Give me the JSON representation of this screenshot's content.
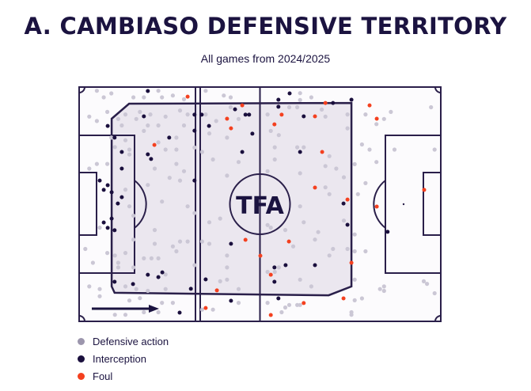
{
  "title": "A. CAMBIASO DEFENSIVE TERRITORY",
  "subtitle": "All games from 2024/2025",
  "logo_text": "TFA",
  "colors": {
    "defensive_action": "#cbc7d5",
    "interception": "#1a0f3d",
    "foul": "#f4401f",
    "territory_fill": "#ebe7ef",
    "pitch_line": "#2a1f4a",
    "pitch_bg": "#fcfbfd"
  },
  "legend": [
    {
      "label": "Defensive action",
      "color": "#9c96ad"
    },
    {
      "label": "Interception",
      "color": "#1a0f3d"
    },
    {
      "label": "Foul",
      "color": "#f4401f"
    }
  ],
  "chart_data": {
    "type": "scatter",
    "title": "A. CAMBIASO DEFENSIVE TERRITORY",
    "subtitle": "All games from 2024/2025",
    "coordinate_system": "pitch 0-100 (x: own goal to opponent goal, y: top to bottom)",
    "attack_direction": "left-to-right",
    "legend_placement": "bottom-left",
    "territory_polygon": [
      [
        9,
        13.5
      ],
      [
        13.8,
        7.1
      ],
      [
        75.3,
        6.8
      ],
      [
        75.3,
        85.1
      ],
      [
        69,
        88.9
      ],
      [
        9.8,
        87.8
      ],
      [
        9,
        85.1
      ]
    ],
    "series": [
      {
        "name": "Defensive action",
        "points": [
          [
            4.9,
            1.6
          ],
          [
            6.8,
            4.4
          ],
          [
            8.9,
            2.7
          ],
          [
            15.0,
            4.4
          ],
          [
            17.9,
            4.4
          ],
          [
            21.9,
            1.6
          ],
          [
            22.9,
            4.4
          ],
          [
            25.9,
            3.6
          ],
          [
            29.0,
            5.2
          ],
          [
            35.0,
            1.6
          ],
          [
            40.0,
            3.6
          ],
          [
            41.9,
            4.4
          ],
          [
            7.8,
            10.6
          ],
          [
            2.8,
            12.6
          ],
          [
            4.9,
            14.5
          ],
          [
            10.8,
            13.6
          ],
          [
            12.8,
            11.7
          ],
          [
            15.8,
            13.6
          ],
          [
            16.8,
            10.6
          ],
          [
            19.7,
            11.7
          ],
          [
            23.9,
            12.6
          ],
          [
            27.9,
            10.0
          ],
          [
            30.0,
            11.7
          ],
          [
            35.0,
            11.7
          ],
          [
            37.9,
            14.5
          ],
          [
            41.9,
            8.6
          ],
          [
            44.1,
            13.6
          ],
          [
            11.8,
            16.4
          ],
          [
            19.0,
            16.4
          ],
          [
            17.9,
            18.7
          ],
          [
            21.9,
            16.4
          ],
          [
            29.0,
            16.4
          ],
          [
            36.0,
            19.8
          ],
          [
            40.9,
            21.6
          ],
          [
            8.9,
            21.6
          ],
          [
            12.8,
            22.7
          ],
          [
            9.9,
            25.6
          ],
          [
            13.9,
            26.7
          ],
          [
            13.9,
            28.8
          ],
          [
            21.9,
            23.6
          ],
          [
            23.9,
            26.7
          ],
          [
            26.9,
            26.7
          ],
          [
            26.9,
            21.6
          ],
          [
            31.9,
            25.8
          ],
          [
            34.0,
            27.7
          ],
          [
            37.0,
            30.9
          ],
          [
            44.1,
            32.0
          ],
          [
            4.9,
            32.8
          ],
          [
            7.8,
            32.8
          ],
          [
            2.8,
            34.8
          ],
          [
            20.9,
            34.8
          ],
          [
            26.9,
            32.8
          ],
          [
            29.0,
            35.9
          ],
          [
            25.0,
            38.7
          ],
          [
            27.9,
            39.9
          ],
          [
            19.0,
            41.8
          ],
          [
            40.9,
            37.8
          ],
          [
            12.8,
            43.8
          ],
          [
            22.9,
            48.9
          ],
          [
            61.1,
            2.6
          ],
          [
            64.2,
            4.4
          ],
          [
            61.1,
            5.5
          ],
          [
            58.1,
            8.6
          ],
          [
            60.3,
            8.6
          ],
          [
            67.1,
            9.6
          ],
          [
            68.1,
            12.6
          ],
          [
            74.2,
            11.7
          ],
          [
            79.2,
            11.7
          ],
          [
            86.2,
            10.6
          ],
          [
            84.3,
            13.6
          ],
          [
            82.2,
            15.8
          ],
          [
            97.3,
            8.6
          ],
          [
            52.1,
            11.7
          ],
          [
            53.0,
            18.7
          ],
          [
            55.2,
            20.5
          ],
          [
            54.1,
            25.7
          ],
          [
            60.3,
            25.7
          ],
          [
            62.1,
            25.7
          ],
          [
            69.2,
            29.5
          ],
          [
            74.2,
            17.6
          ],
          [
            78.2,
            24.5
          ],
          [
            80.3,
            26.7
          ],
          [
            87.2,
            26.7
          ],
          [
            98.3,
            26.7
          ],
          [
            82.2,
            32.0
          ],
          [
            76.2,
            32.9
          ],
          [
            71.1,
            34.8
          ],
          [
            68.1,
            33.7
          ],
          [
            61.1,
            36.8
          ],
          [
            54.1,
            30.9
          ],
          [
            52.1,
            35.9
          ],
          [
            73.2,
            38.5
          ],
          [
            79.2,
            41.0
          ],
          [
            68.1,
            42.8
          ],
          [
            69.2,
            45.7
          ],
          [
            77.1,
            45.7
          ],
          [
            13.9,
            50.9
          ],
          [
            30.0,
            50.9
          ],
          [
            31.9,
            53.8
          ],
          [
            15.0,
            54.9
          ],
          [
            5.7,
            60.0
          ],
          [
            20.9,
            61.0
          ],
          [
            36.0,
            57.7
          ],
          [
            39.0,
            56.1
          ],
          [
            1.7,
            69.1
          ],
          [
            7.8,
            70.8
          ],
          [
            12.8,
            70.8
          ],
          [
            15.0,
            65.1
          ],
          [
            20.9,
            66.9
          ],
          [
            25.9,
            68.0
          ],
          [
            27.9,
            65.9
          ],
          [
            30.0,
            65.9
          ],
          [
            34.0,
            65.9
          ],
          [
            36.0,
            66.9
          ],
          [
            26.9,
            70.1
          ],
          [
            17.9,
            73.1
          ],
          [
            20.0,
            73.1
          ],
          [
            21.9,
            73.1
          ],
          [
            9.9,
            71.9
          ],
          [
            10.8,
            75.0
          ],
          [
            10.8,
            77.0
          ],
          [
            3.8,
            75.0
          ],
          [
            15.0,
            77.0
          ],
          [
            31.9,
            76.0
          ],
          [
            40.9,
            71.9
          ],
          [
            40.9,
            77.0
          ],
          [
            23.9,
            80.0
          ],
          [
            12.8,
            85.1
          ],
          [
            15.8,
            86.2
          ],
          [
            19.0,
            87.0
          ],
          [
            23.9,
            86.2
          ],
          [
            2.8,
            85.1
          ],
          [
            5.7,
            86.2
          ],
          [
            5.7,
            89.3
          ],
          [
            13.9,
            91.1
          ],
          [
            16.8,
            90.1
          ],
          [
            22.9,
            92.1
          ],
          [
            25.9,
            92.1
          ],
          [
            17.9,
            96.1
          ],
          [
            21.9,
            96.1
          ],
          [
            9.9,
            97.2
          ],
          [
            12.8,
            97.2
          ],
          [
            39.0,
            82.9
          ],
          [
            40.9,
            82.2
          ],
          [
            44.1,
            86.2
          ],
          [
            37.0,
            95.0
          ],
          [
            44.1,
            92.1
          ],
          [
            34.0,
            95.0
          ],
          [
            61.1,
            50.9
          ],
          [
            52.1,
            58.9
          ],
          [
            53.0,
            60.0
          ],
          [
            57.0,
            61.0
          ],
          [
            62.1,
            57.7
          ],
          [
            66.1,
            61.9
          ],
          [
            65.2,
            65.1
          ],
          [
            73.2,
            57.0
          ],
          [
            76.2,
            62.9
          ],
          [
            59.2,
            68.0
          ],
          [
            70.2,
            69.1
          ],
          [
            69.2,
            71.9
          ],
          [
            74.2,
            69.1
          ],
          [
            76.2,
            70.1
          ],
          [
            79.2,
            70.1
          ],
          [
            52.1,
            78.9
          ],
          [
            54.1,
            78.9
          ],
          [
            55.2,
            77.0
          ],
          [
            61.1,
            82.2
          ],
          [
            64.2,
            85.1
          ],
          [
            76.2,
            82.2
          ],
          [
            83.2,
            86.2
          ],
          [
            84.3,
            85.1
          ],
          [
            84.3,
            87.0
          ],
          [
            95.3,
            82.9
          ],
          [
            96.2,
            84.0
          ],
          [
            98.3,
            88.0
          ],
          [
            52.1,
            92.1
          ],
          [
            57.0,
            94.1
          ],
          [
            58.1,
            93.0
          ],
          [
            60.3,
            93.0
          ],
          [
            61.1,
            93.0
          ],
          [
            56.0,
            96.1
          ],
          [
            75.3,
            96.1
          ],
          [
            75.3,
            97.2
          ],
          [
            76.2,
            91.0
          ],
          [
            78.2,
            90.2
          ]
        ]
      },
      {
        "name": "Interception",
        "points": [
          [
            19.0,
            1.7
          ],
          [
            17.9,
            12.5
          ],
          [
            31.9,
            11.8
          ],
          [
            33.9,
            11.8
          ],
          [
            7.9,
            16.6
          ],
          [
            31.9,
            18.6
          ],
          [
            35.9,
            16.6
          ],
          [
            43.1,
            9.5
          ],
          [
            46.0,
            11.8
          ],
          [
            47.0,
            11.8
          ],
          [
            47.9,
            19.9
          ],
          [
            24.9,
            21.6
          ],
          [
            9.8,
            21.6
          ],
          [
            11.8,
            27.7
          ],
          [
            19.0,
            28.7
          ],
          [
            19.9,
            30.7
          ],
          [
            45.1,
            27.7
          ],
          [
            11.8,
            34.8
          ],
          [
            31.9,
            39.9
          ],
          [
            5.7,
            39.9
          ],
          [
            7.9,
            41.9
          ],
          [
            6.8,
            43.9
          ],
          [
            9.0,
            44.9
          ],
          [
            11.8,
            47.0
          ],
          [
            10.7,
            49.7
          ],
          [
            58.2,
            2.7
          ],
          [
            55.1,
            5.4
          ],
          [
            55.1,
            8.4
          ],
          [
            70.2,
            6.8
          ],
          [
            75.3,
            5.4
          ],
          [
            62.1,
            12.5
          ],
          [
            61.1,
            27.7
          ],
          [
            73.1,
            49.7
          ],
          [
            6.8,
            57.8
          ],
          [
            9.0,
            56.1
          ],
          [
            7.9,
            60.1
          ],
          [
            9.8,
            61.1
          ],
          [
            19.0,
            80.1
          ],
          [
            23.0,
            79.1
          ],
          [
            21.9,
            81.1
          ],
          [
            9.8,
            83.1
          ],
          [
            14.9,
            84.1
          ],
          [
            30.9,
            86.1
          ],
          [
            35.0,
            82.1
          ],
          [
            42.0,
            66.9
          ],
          [
            42.0,
            91.2
          ],
          [
            27.8,
            96.3
          ],
          [
            74.2,
            58.8
          ],
          [
            85.3,
            61.8
          ],
          [
            54.0,
            77.0
          ],
          [
            57.1,
            76.0
          ],
          [
            65.2,
            76.0
          ],
          [
            54.0,
            83.1
          ],
          [
            55.1,
            90.2
          ]
        ]
      },
      {
        "name": "Foul",
        "points": [
          [
            30.0,
            4.1
          ],
          [
            20.8,
            24.7
          ],
          [
            45.1,
            7.8
          ],
          [
            40.9,
            13.5
          ],
          [
            42.0,
            17.6
          ],
          [
            68.1,
            6.8
          ],
          [
            80.3,
            7.8
          ],
          [
            56.0,
            11.8
          ],
          [
            65.2,
            12.5
          ],
          [
            82.3,
            13.5
          ],
          [
            54.0,
            15.9
          ],
          [
            67.2,
            27.7
          ],
          [
            65.2,
            42.9
          ],
          [
            74.2,
            48.0
          ],
          [
            95.4,
            43.9
          ],
          [
            46.0,
            65.2
          ],
          [
            38.1,
            86.8
          ],
          [
            35.0,
            94.3
          ],
          [
            50.1,
            72.0
          ],
          [
            82.3,
            51.0
          ],
          [
            58.0,
            65.9
          ],
          [
            75.3,
            75.0
          ],
          [
            53.0,
            80.1
          ],
          [
            73.1,
            90.2
          ],
          [
            62.1,
            92.2
          ],
          [
            53.0,
            97.3
          ]
        ]
      }
    ]
  }
}
